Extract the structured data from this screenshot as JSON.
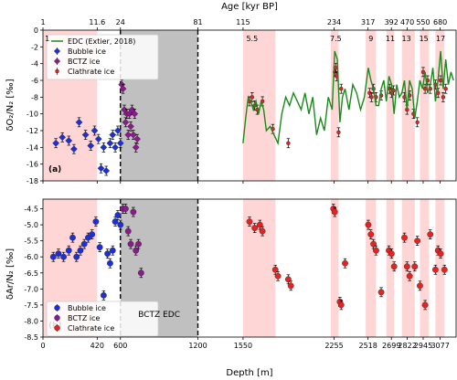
{
  "figure": {
    "top_axis_label": "Age [kyr BP]",
    "bottom_axis_label": "Depth [m]",
    "depth_range": [
      0,
      3200
    ],
    "top_ticks": [
      {
        "depth": 0,
        "label": "1"
      },
      {
        "depth": 420,
        "label": "11.6"
      },
      {
        "depth": 600,
        "label": "24"
      },
      {
        "depth": 1200,
        "label": "81"
      },
      {
        "depth": 1550,
        "label": "115"
      },
      {
        "depth": 2255,
        "label": "234"
      },
      {
        "depth": 2518,
        "label": "317"
      },
      {
        "depth": 2699,
        "label": "392"
      },
      {
        "depth": 2822,
        "label": "470"
      },
      {
        "depth": 2945,
        "label": "550"
      },
      {
        "depth": 3077,
        "label": "680"
      }
    ],
    "bottom_ticks": [
      {
        "depth": 0,
        "label": "0"
      },
      {
        "depth": 420,
        "label": "420"
      },
      {
        "depth": 600,
        "label": "600"
      },
      {
        "depth": 1200,
        "label": "1200"
      },
      {
        "depth": 1550,
        "label": "1550"
      },
      {
        "depth": 2255,
        "label": "2255"
      },
      {
        "depth": 2518,
        "label": "2518"
      },
      {
        "depth": 2699,
        "label": "2699"
      },
      {
        "depth": 2822,
        "label": "2822"
      },
      {
        "depth": 2945,
        "label": "2945"
      },
      {
        "depth": 3077,
        "label": "3077"
      }
    ],
    "interglacial_bands": [
      [
        0,
        420
      ],
      [
        1550,
        1800
      ],
      [
        2230,
        2290
      ],
      [
        2500,
        2580
      ],
      [
        2660,
        2720
      ],
      [
        2780,
        2880
      ],
      [
        2920,
        2990
      ],
      [
        3040,
        3110
      ]
    ],
    "stage_labels": [
      {
        "depth": 15,
        "label": "1"
      },
      {
        "depth": 1620,
        "label": "5.5"
      },
      {
        "depth": 2268,
        "label": "7.5"
      },
      {
        "depth": 2540,
        "label": "9"
      },
      {
        "depth": 2690,
        "label": "11"
      },
      {
        "depth": 2815,
        "label": "13"
      },
      {
        "depth": 2950,
        "label": "15"
      },
      {
        "depth": 3080,
        "label": "17"
      }
    ],
    "btz_shade": [
      600,
      1200
    ],
    "dashed_lines": [
      600,
      1200
    ],
    "colors": {
      "band": "#ffd6d6",
      "btz": "#c0c0c0",
      "bubble": "#1f2fd8",
      "bctz": "#8b1a8b",
      "clathrate": "#e62222",
      "edc": "#1a8a1a"
    }
  },
  "chart_data": [
    {
      "type": "scatter",
      "panel_label": "(a)",
      "ylabel": "δO₂/N₂ [‰]",
      "ylim": [
        -18,
        0
      ],
      "yticks": [
        "-18",
        "-16",
        "-14",
        "-12",
        "-10",
        "-8",
        "-6",
        "-4",
        "-2",
        "0"
      ],
      "legend": {
        "position": "upper-left",
        "entries": [
          "EDC (Extier, 2018)",
          "Bubble ice",
          "BCTZ ice",
          "Clathrate ice"
        ]
      },
      "series": [
        {
          "name": "Bubble ice",
          "marker": "diamond",
          "x": [
            100,
            150,
            200,
            240,
            280,
            330,
            370,
            400,
            430,
            450,
            470,
            490,
            520,
            540,
            560,
            580,
            600
          ],
          "y": [
            -13.5,
            -12.8,
            -13.2,
            -14.2,
            -11.0,
            -12.5,
            -13.8,
            -12.0,
            -13.0,
            -16.5,
            -14.0,
            -16.8,
            -13.5,
            -12.5,
            -14.0,
            -12.0,
            -13.5
          ]
        },
        {
          "name": "BCTZ ice",
          "marker": "diamond",
          "x": [
            610,
            620,
            630,
            640,
            650,
            660,
            670,
            680,
            690,
            700,
            710,
            720,
            730
          ],
          "y": [
            -6.5,
            -7.0,
            -9.5,
            -11.0,
            -10.0,
            -12.5,
            -10.0,
            -11.5,
            -9.5,
            -12.5,
            -10.0,
            -14.0,
            -13.0
          ]
        },
        {
          "name": "Clathrate ice",
          "marker": "circle",
          "x": [
            1600,
            1620,
            1640,
            1660,
            1700,
            1780,
            1900,
            2260,
            2268,
            2275,
            2290,
            2310,
            2530,
            2545,
            2560,
            2580,
            2620,
            2685,
            2700,
            2715,
            2800,
            2820,
            2840,
            2870,
            2900,
            2945,
            2960,
            2980,
            3000,
            3040,
            3060,
            3080,
            3100,
            3120
          ],
          "y": [
            -8.5,
            -8.0,
            -9.0,
            -9.5,
            -8.5,
            -11.8,
            -13.5,
            -5.0,
            -4.5,
            -5.5,
            -12.2,
            -7.0,
            -7.5,
            -8.0,
            -7.0,
            -8.0,
            -7.8,
            -7.0,
            -7.5,
            -7.2,
            -8.0,
            -9.5,
            -7.8,
            -10.0,
            -11.0,
            -5.0,
            -7.0,
            -6.0,
            -7.0,
            -6.5,
            -7.5,
            -6.0,
            -8.0,
            -7.0
          ]
        },
        {
          "name": "EDC (Extier, 2018)",
          "marker": "line",
          "x": [
            1550,
            1570,
            1590,
            1610,
            1630,
            1650,
            1670,
            1690,
            1710,
            1730,
            1760,
            1790,
            1820,
            1850,
            1880,
            1910,
            1940,
            1970,
            2000,
            2030,
            2060,
            2090,
            2120,
            2150,
            2180,
            2210,
            2240,
            2260,
            2280,
            2300,
            2320,
            2340,
            2370,
            2400,
            2430,
            2460,
            2490,
            2520,
            2540,
            2560,
            2580,
            2600,
            2620,
            2640,
            2660,
            2680,
            2700,
            2720,
            2740,
            2760,
            2780,
            2800,
            2820,
            2840,
            2860,
            2880,
            2900,
            2920,
            2940,
            2960,
            2980,
            3000,
            3020,
            3040,
            3060,
            3080,
            3100,
            3120,
            3140,
            3160,
            3180
          ],
          "y": [
            -13.5,
            -10.5,
            -8.0,
            -8.5,
            -9.5,
            -8.5,
            -10.0,
            -8.5,
            -9.5,
            -12.0,
            -11.5,
            -12.5,
            -13.5,
            -10.0,
            -8.0,
            -9.0,
            -7.5,
            -8.5,
            -9.5,
            -7.5,
            -10.0,
            -8.0,
            -12.5,
            -10.5,
            -12.0,
            -8.0,
            -9.5,
            -2.5,
            -3.5,
            -11.0,
            -8.0,
            -7.0,
            -9.5,
            -6.5,
            -7.5,
            -9.5,
            -8.0,
            -4.5,
            -6.0,
            -7.0,
            -9.0,
            -9.0,
            -7.0,
            -6.0,
            -8.5,
            -5.5,
            -6.5,
            -10.0,
            -6.5,
            -8.0,
            -7.5,
            -6.0,
            -9.5,
            -6.0,
            -7.0,
            -10.5,
            -8.5,
            -6.0,
            -7.0,
            -5.0,
            -7.5,
            -6.5,
            -4.5,
            -8.5,
            -6.0,
            -2.5,
            -7.0,
            -3.5,
            -6.5,
            -5.0,
            -6.0
          ]
        }
      ]
    },
    {
      "type": "scatter",
      "panel_label": "(b)",
      "ylabel": "δAr/N₂ [‰]",
      "ylim": [
        -8.5,
        -4.2
      ],
      "yticks": [
        "-8.5",
        "-8.0",
        "-7.5",
        "-7.0",
        "-6.5",
        "-6.0",
        "-5.5",
        "-5.0",
        "-4.5"
      ],
      "legend": {
        "position": "lower-left",
        "entries": [
          "Bubble ice",
          "BCTZ ice",
          "Clathrate ice"
        ]
      },
      "annotation": "BCTZ EDC",
      "series": [
        {
          "name": "Bubble ice",
          "marker": "circle",
          "x": [
            80,
            120,
            160,
            200,
            230,
            260,
            290,
            320,
            350,
            380,
            410,
            440,
            470,
            500,
            520,
            540,
            560,
            580,
            600
          ],
          "y": [
            -6.0,
            -5.9,
            -6.0,
            -5.8,
            -5.4,
            -6.0,
            -5.8,
            -5.6,
            -5.4,
            -5.3,
            -4.9,
            -5.7,
            -7.2,
            -5.9,
            -6.2,
            -5.8,
            -4.9,
            -4.7,
            -5.0
          ]
        },
        {
          "name": "BCTZ ice",
          "marker": "circle",
          "x": [
            620,
            640,
            660,
            680,
            700,
            720,
            740,
            760
          ],
          "y": [
            -4.5,
            -4.5,
            -5.2,
            -5.6,
            -4.6,
            -5.8,
            -5.6,
            -6.5
          ]
        },
        {
          "name": "Clathrate ice",
          "marker": "circle",
          "x": [
            1600,
            1640,
            1680,
            1700,
            1800,
            1820,
            1900,
            1920,
            2250,
            2260,
            2300,
            2310,
            2340,
            2520,
            2540,
            2560,
            2580,
            2620,
            2680,
            2700,
            2720,
            2800,
            2820,
            2840,
            2880,
            2900,
            2920,
            2960,
            3000,
            3040,
            3060,
            3080,
            3110
          ],
          "y": [
            -4.9,
            -5.1,
            -5.0,
            -5.2,
            -6.4,
            -6.6,
            -6.7,
            -6.9,
            -4.5,
            -4.6,
            -7.4,
            -7.5,
            -6.2,
            -5.0,
            -5.3,
            -5.6,
            -5.8,
            -7.1,
            -5.8,
            -5.9,
            -6.3,
            -5.4,
            -6.3,
            -6.6,
            -6.3,
            -5.5,
            -6.9,
            -7.5,
            -5.3,
            -6.4,
            -5.8,
            -5.9,
            -6.4
          ]
        }
      ]
    }
  ]
}
